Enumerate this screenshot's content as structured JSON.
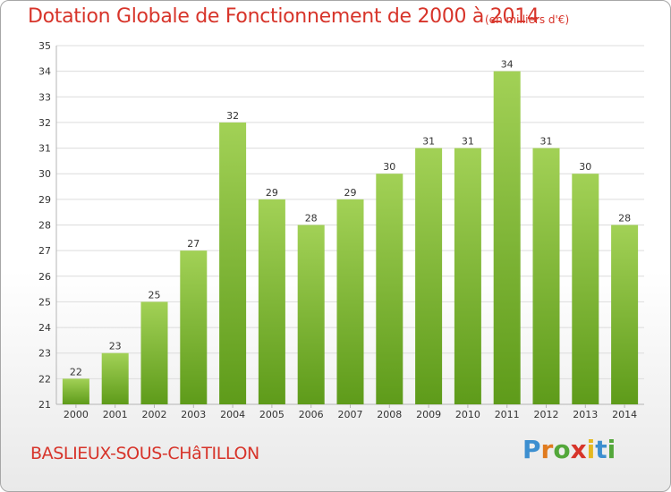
{
  "header": {
    "title": "Dotation Globale de Fonctionnement de 2000 à 2014",
    "unit": "(en milliers d'€)"
  },
  "footer": {
    "commune": "BASLIEUX-SOUS-CHâTILLON",
    "logo": [
      "P",
      "r",
      "o",
      "x",
      "i",
      "t",
      "i"
    ]
  },
  "colors": {
    "title": "#d7342a",
    "bar_light": "#a2d156",
    "bar_dark": "#5e9b1a",
    "grid": "#dcdcdc"
  },
  "chart_data": {
    "type": "bar",
    "categories": [
      "2000",
      "2001",
      "2002",
      "2003",
      "2004",
      "2005",
      "2006",
      "2007",
      "2008",
      "2009",
      "2010",
      "2011",
      "2012",
      "2013",
      "2014"
    ],
    "values": [
      22,
      23,
      25,
      27,
      32,
      29,
      28,
      29,
      30,
      31,
      31,
      34,
      31,
      30,
      28
    ],
    "ylim": [
      21,
      35
    ],
    "yticks": [
      21,
      22,
      23,
      24,
      25,
      26,
      27,
      28,
      29,
      30,
      31,
      32,
      33,
      34,
      35
    ],
    "grid": true,
    "data_labels": true
  }
}
